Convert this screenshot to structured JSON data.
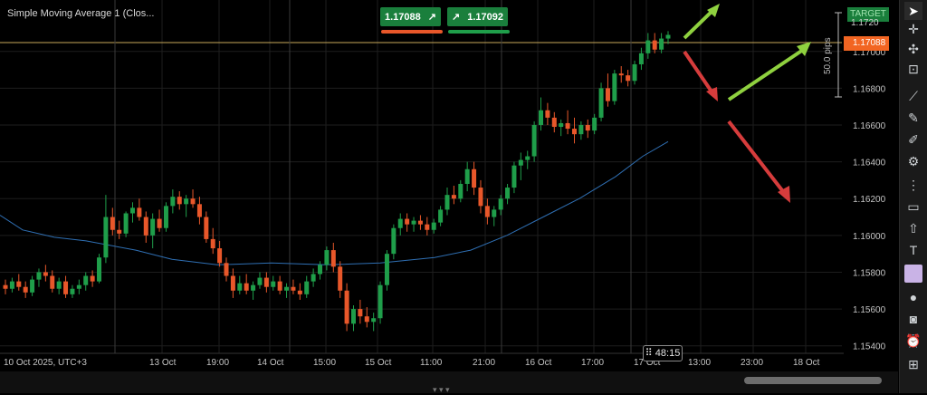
{
  "indicator": {
    "label": "Simple Moving Average 1 (Clos..."
  },
  "trade": {
    "sell_price": "1.17088",
    "buy_price": "1.17092",
    "sell_icon": "arrow-up-right-icon",
    "buy_icon": "arrow-up-right-icon"
  },
  "badges": {
    "current_price": "1.17088",
    "target_label": "TARGET",
    "target_price": "1.1720",
    "pips_label": "50.0 pips",
    "timer": "48:15"
  },
  "colors": {
    "background": "#000000",
    "bull": "#1f9e4a",
    "bear": "#e8572a",
    "sma": "#2f6fb3",
    "price_line": "#c8a85a",
    "arrow_green": "#8fd13f",
    "arrow_red": "#d63c3c",
    "grid": "#1e1e1e"
  },
  "toolbar": {
    "icons": [
      "cursor-icon",
      "crosshair-icon",
      "move-icon",
      "snap-icon",
      "trendline-icon",
      "brush-icon",
      "pencil-icon",
      "settings-icon",
      "pattern-icon",
      "rectangle-icon",
      "arrow-shape-icon",
      "text-icon",
      "color-swatch-icon",
      "circle-icon",
      "camera-icon",
      "alert-icon",
      "add-indicator-icon"
    ]
  },
  "chart_data": {
    "type": "candlestick",
    "symbol_indicator": "Simple Moving Average 1",
    "x_tick_labels": [
      "10 Oct 2025, UTC+3",
      "13 Oct",
      "19:00",
      "14 Oct",
      "15:00",
      "15 Oct",
      "11:00",
      "21:00",
      "16 Oct",
      "17:00",
      "17 Oct",
      "13:00",
      "23:00",
      "18 Oct"
    ],
    "y_tick_labels": [
      "1.1720",
      "1.17000",
      "1.16800",
      "1.16600",
      "1.16400",
      "1.16200",
      "1.16000",
      "1.15800",
      "1.15600",
      "1.15400"
    ],
    "ylim": [
      1.153,
      1.1725
    ],
    "current_price": 1.17088,
    "candles_ohlc": [
      [
        1.1573,
        1.1576,
        1.1568,
        1.1571
      ],
      [
        1.1571,
        1.1577,
        1.1569,
        1.1575
      ],
      [
        1.1575,
        1.1579,
        1.157,
        1.1572
      ],
      [
        1.1572,
        1.1575,
        1.1566,
        1.1569
      ],
      [
        1.1569,
        1.1578,
        1.1567,
        1.1576
      ],
      [
        1.1576,
        1.1582,
        1.1572,
        1.158
      ],
      [
        1.158,
        1.1584,
        1.1575,
        1.1578
      ],
      [
        1.1578,
        1.1581,
        1.1569,
        1.1571
      ],
      [
        1.1571,
        1.1577,
        1.1568,
        1.1575
      ],
      [
        1.1575,
        1.1578,
        1.1566,
        1.1568
      ],
      [
        1.1568,
        1.1573,
        1.1566,
        1.1571
      ],
      [
        1.1571,
        1.1576,
        1.1568,
        1.1573
      ],
      [
        1.1573,
        1.158,
        1.157,
        1.1578
      ],
      [
        1.1578,
        1.1581,
        1.1572,
        1.1575
      ],
      [
        1.1575,
        1.159,
        1.1574,
        1.1588
      ],
      [
        1.1588,
        1.1622,
        1.1585,
        1.161
      ],
      [
        1.161,
        1.1615,
        1.16,
        1.1603
      ],
      [
        1.1603,
        1.1608,
        1.1598,
        1.1601
      ],
      [
        1.1601,
        1.1613,
        1.1599,
        1.1612
      ],
      [
        1.1612,
        1.1618,
        1.1607,
        1.1615
      ],
      [
        1.1615,
        1.162,
        1.1608,
        1.161
      ],
      [
        1.161,
        1.1613,
        1.1596,
        1.16
      ],
      [
        1.16,
        1.1612,
        1.1593,
        1.1609
      ],
      [
        1.1609,
        1.1614,
        1.1602,
        1.1604
      ],
      [
        1.1604,
        1.1618,
        1.1602,
        1.1616
      ],
      [
        1.1616,
        1.1625,
        1.1612,
        1.1621
      ],
      [
        1.1621,
        1.1624,
        1.1614,
        1.1617
      ],
      [
        1.1617,
        1.1622,
        1.161,
        1.162
      ],
      [
        1.162,
        1.1625,
        1.1615,
        1.1617
      ],
      [
        1.1617,
        1.1621,
        1.1606,
        1.161
      ],
      [
        1.161,
        1.1613,
        1.1596,
        1.1598
      ],
      [
        1.1598,
        1.1604,
        1.159,
        1.1593
      ],
      [
        1.1593,
        1.1597,
        1.1583,
        1.1585
      ],
      [
        1.1585,
        1.1588,
        1.1575,
        1.1578
      ],
      [
        1.1578,
        1.1582,
        1.1566,
        1.157
      ],
      [
        1.157,
        1.1578,
        1.1568,
        1.1574
      ],
      [
        1.1574,
        1.1579,
        1.1568,
        1.157
      ],
      [
        1.157,
        1.1575,
        1.1565,
        1.1573
      ],
      [
        1.1573,
        1.158,
        1.1571,
        1.1577
      ],
      [
        1.1577,
        1.158,
        1.1569,
        1.1572
      ],
      [
        1.1572,
        1.1578,
        1.157,
        1.1575
      ],
      [
        1.1575,
        1.1578,
        1.1568,
        1.157
      ],
      [
        1.157,
        1.1574,
        1.1566,
        1.1572
      ],
      [
        1.1572,
        1.1576,
        1.1568,
        1.157
      ],
      [
        1.157,
        1.1574,
        1.1565,
        1.1568
      ],
      [
        1.1568,
        1.1578,
        1.1566,
        1.1575
      ],
      [
        1.1575,
        1.1582,
        1.1572,
        1.1579
      ],
      [
        1.1579,
        1.1586,
        1.1576,
        1.1584
      ],
      [
        1.1584,
        1.1594,
        1.1581,
        1.1592
      ],
      [
        1.1592,
        1.1596,
        1.158,
        1.1583
      ],
      [
        1.1583,
        1.1586,
        1.1566,
        1.157
      ],
      [
        1.157,
        1.1574,
        1.1548,
        1.1552
      ],
      [
        1.1552,
        1.1562,
        1.1548,
        1.156
      ],
      [
        1.156,
        1.1565,
        1.1552,
        1.1556
      ],
      [
        1.1556,
        1.1561,
        1.155,
        1.1553
      ],
      [
        1.1553,
        1.1558,
        1.1548,
        1.1555
      ],
      [
        1.1555,
        1.1575,
        1.1552,
        1.1573
      ],
      [
        1.1573,
        1.1592,
        1.157,
        1.159
      ],
      [
        1.159,
        1.1606,
        1.1587,
        1.1604
      ],
      [
        1.1604,
        1.1612,
        1.16,
        1.1609
      ],
      [
        1.1609,
        1.1612,
        1.1602,
        1.1606
      ],
      [
        1.1606,
        1.161,
        1.1602,
        1.1608
      ],
      [
        1.1608,
        1.1611,
        1.1603,
        1.1606
      ],
      [
        1.1606,
        1.161,
        1.16,
        1.1603
      ],
      [
        1.1603,
        1.1609,
        1.1601,
        1.1607
      ],
      [
        1.1607,
        1.1616,
        1.1605,
        1.1614
      ],
      [
        1.1614,
        1.1626,
        1.1611,
        1.1622
      ],
      [
        1.1622,
        1.1627,
        1.1617,
        1.162
      ],
      [
        1.162,
        1.163,
        1.1618,
        1.1628
      ],
      [
        1.1628,
        1.164,
        1.1624,
        1.1636
      ],
      [
        1.1636,
        1.164,
        1.1622,
        1.1626
      ],
      [
        1.1626,
        1.163,
        1.1612,
        1.1616
      ],
      [
        1.1616,
        1.162,
        1.1606,
        1.161
      ],
      [
        1.161,
        1.1616,
        1.1605,
        1.1614
      ],
      [
        1.1614,
        1.1622,
        1.1611,
        1.162
      ],
      [
        1.162,
        1.1628,
        1.1617,
        1.1626
      ],
      [
        1.1626,
        1.164,
        1.1623,
        1.1638
      ],
      [
        1.1638,
        1.1645,
        1.163,
        1.1641
      ],
      [
        1.1641,
        1.1646,
        1.1636,
        1.1643
      ],
      [
        1.1643,
        1.1662,
        1.164,
        1.166
      ],
      [
        1.166,
        1.1675,
        1.1657,
        1.1668
      ],
      [
        1.1668,
        1.1672,
        1.166,
        1.1664
      ],
      [
        1.1664,
        1.1667,
        1.1656,
        1.1659
      ],
      [
        1.1659,
        1.1663,
        1.1654,
        1.1661
      ],
      [
        1.1661,
        1.1668,
        1.1655,
        1.1658
      ],
      [
        1.1658,
        1.1664,
        1.165,
        1.1655
      ],
      [
        1.1655,
        1.1662,
        1.1652,
        1.166
      ],
      [
        1.166,
        1.1663,
        1.1653,
        1.1657
      ],
      [
        1.1657,
        1.1666,
        1.1655,
        1.1664
      ],
      [
        1.1664,
        1.1683,
        1.1662,
        1.168
      ],
      [
        1.168,
        1.1688,
        1.167,
        1.1673
      ],
      [
        1.1673,
        1.169,
        1.1671,
        1.1688
      ],
      [
        1.1688,
        1.1692,
        1.1683,
        1.1687
      ],
      [
        1.1687,
        1.169,
        1.1681,
        1.1684
      ],
      [
        1.1684,
        1.1695,
        1.1682,
        1.1693
      ],
      [
        1.1693,
        1.1702,
        1.169,
        1.1699
      ],
      [
        1.1699,
        1.171,
        1.1696,
        1.1706
      ],
      [
        1.1706,
        1.171,
        1.1699,
        1.1701
      ],
      [
        1.1701,
        1.171,
        1.1699,
        1.1707
      ],
      [
        1.1707,
        1.1711,
        1.1704,
        1.1709
      ]
    ],
    "sma_series": [
      [
        0,
        1.1611
      ],
      [
        25,
        1.1603
      ],
      [
        60,
        1.1599
      ],
      [
        95,
        1.1597
      ],
      [
        150,
        1.1592
      ],
      [
        190,
        1.1587
      ],
      [
        240,
        1.1584
      ],
      [
        300,
        1.1585
      ],
      [
        360,
        1.1584
      ],
      [
        420,
        1.1585
      ],
      [
        480,
        1.1588
      ],
      [
        520,
        1.1592
      ],
      [
        560,
        1.16
      ],
      [
        600,
        1.161
      ],
      [
        640,
        1.162
      ],
      [
        680,
        1.1632
      ],
      [
        710,
        1.1643
      ],
      [
        738,
        1.1651
      ]
    ]
  }
}
